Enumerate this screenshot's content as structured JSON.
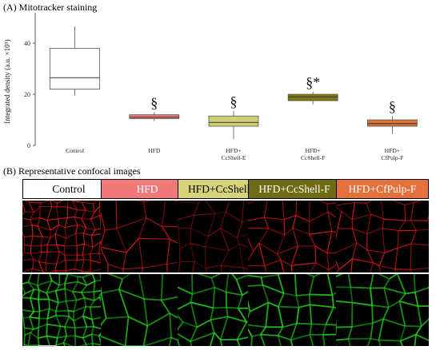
{
  "panel_a": {
    "title": "(A) Mitotracker staining"
  },
  "panel_b": {
    "title": "(B) Representative confocal images"
  },
  "chart_data": {
    "type": "box",
    "ylabel": "Integrated density (a.u. ×10⁵)",
    "ylim": [
      0,
      50
    ],
    "yticks": [
      0,
      20,
      40
    ],
    "grid": false,
    "categories": [
      "Control",
      "HFD",
      "HFD+\nCcShell-E",
      "HFD+\nCcShell-F",
      "HFD+\nCfPulp-F"
    ],
    "boxes": [
      {
        "category": "Control",
        "min": 19.5,
        "q1": 22.0,
        "median": 26.5,
        "q3": 38.0,
        "max": 46.5,
        "color": "#ffffff",
        "annotation": ""
      },
      {
        "category": "HFD",
        "min": 9.5,
        "q1": 10.5,
        "median": 11.0,
        "q3": 12.0,
        "max": 13.0,
        "color": "#f07a7a",
        "annotation": "§"
      },
      {
        "category": "HFD+CcShell-E",
        "min": 2.5,
        "q1": 7.5,
        "median": 9.0,
        "q3": 11.5,
        "max": 13.5,
        "color": "#d0cf78",
        "annotation": "§"
      },
      {
        "category": "HFD+CcShell-F",
        "min": 16.0,
        "q1": 17.5,
        "median": 19.0,
        "q3": 20.0,
        "max": 21.0,
        "color": "#7c7a14",
        "annotation": "§*"
      },
      {
        "category": "HFD+CfPulp-F",
        "min": 4.5,
        "q1": 7.5,
        "median": 8.5,
        "q3": 10.0,
        "max": 11.5,
        "color": "#e0703a",
        "annotation": "§"
      }
    ]
  },
  "group_labels": [
    {
      "text": "Control",
      "bg": "#ffffff",
      "fg": "#000000"
    },
    {
      "text": "HFD",
      "bg": "#f07a7a",
      "fg": "#ffffff"
    },
    {
      "text": "HFD+CcShell-E",
      "bg": "#d6d37a",
      "fg": "#000000"
    },
    {
      "text": "HFD+CcShell-F",
      "bg": "#6e6b14",
      "fg": "#ffffff"
    },
    {
      "text": "HFD+CfPulp-F",
      "bg": "#e2713c",
      "fg": "#ffffff"
    }
  ],
  "image_rows": [
    {
      "channel": "mitotracker",
      "color": "#ff1a1a"
    },
    {
      "channel": "membrane",
      "color": "#22e01a"
    }
  ]
}
